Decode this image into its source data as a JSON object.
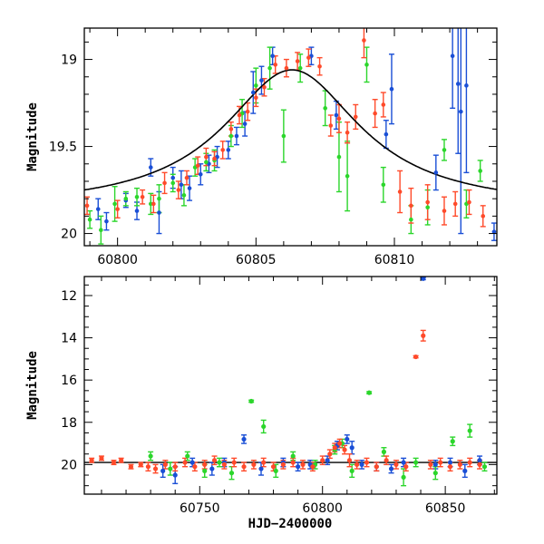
{
  "chart_data": [
    {
      "type": "scatter",
      "panel": "zoom",
      "title": "",
      "xlabel": "",
      "ylabel": "Magnitude",
      "xlim": [
        60798.8,
        60813.7
      ],
      "ylim": [
        20.07,
        18.82
      ],
      "y_inverted": true,
      "x_ticks": [
        "60800",
        "60805",
        "60810"
      ],
      "x_tick_values": [
        60800,
        60805,
        60810
      ],
      "y_ticks": [
        "19",
        "19.5",
        "20"
      ],
      "y_tick_values": [
        19,
        19.5,
        20
      ],
      "grid": false,
      "legend": "none",
      "model_curve": {
        "description": "peaked model light curve (Paczynski-like)",
        "t0": 60806.3,
        "baseline": 19.86,
        "peak": 19.06,
        "tE": 3.0,
        "color": "#000000"
      },
      "series": [
        {
          "color": "#1a4fd6",
          "points": [
            [
              60799.3,
              19.86,
              0.06
            ],
            [
              60799.6,
              19.93,
              0.05
            ],
            [
              60800.3,
              19.81,
              0.04
            ],
            [
              60800.7,
              19.87,
              0.05
            ],
            [
              60801.2,
              19.62,
              0.05
            ],
            [
              60801.5,
              19.88,
              0.12
            ],
            [
              60802.0,
              19.68,
              0.06
            ],
            [
              60802.3,
              19.72,
              0.08
            ],
            [
              60802.6,
              19.74,
              0.07
            ],
            [
              60803.0,
              19.66,
              0.06
            ],
            [
              60803.3,
              19.6,
              0.05
            ],
            [
              60803.6,
              19.56,
              0.06
            ],
            [
              60804.0,
              19.52,
              0.05
            ],
            [
              60804.3,
              19.44,
              0.05
            ],
            [
              60804.6,
              19.37,
              0.07
            ],
            [
              60804.9,
              19.19,
              0.12
            ],
            [
              60805.2,
              19.12,
              0.08
            ],
            [
              60805.6,
              18.98,
              0.05
            ],
            [
              60807.0,
              18.98,
              0.05
            ],
            [
              60807.9,
              19.32,
              0.08
            ],
            [
              60809.7,
              19.43,
              0.08
            ],
            [
              60809.9,
              19.17,
              0.2
            ],
            [
              60811.5,
              19.65,
              0.1
            ],
            [
              60812.1,
              18.98,
              0.3
            ],
            [
              60812.3,
              19.14,
              0.4
            ],
            [
              60812.4,
              19.3,
              0.7
            ],
            [
              60812.6,
              19.15,
              0.5
            ],
            [
              60813.6,
              19.99,
              0.05
            ]
          ]
        },
        {
          "color": "#2bd62b",
          "points": [
            [
              60799.0,
              19.92,
              0.05
            ],
            [
              60799.4,
              19.98,
              0.08
            ],
            [
              60799.9,
              19.83,
              0.1
            ],
            [
              60800.3,
              19.8,
              0.04
            ],
            [
              60800.7,
              19.79,
              0.05
            ],
            [
              60801.2,
              19.83,
              0.06
            ],
            [
              60801.5,
              19.8,
              0.08
            ],
            [
              60802.0,
              19.71,
              0.05
            ],
            [
              60802.4,
              19.78,
              0.06
            ],
            [
              60802.8,
              19.62,
              0.05
            ],
            [
              60803.2,
              19.59,
              0.05
            ],
            [
              60803.5,
              19.58,
              0.06
            ],
            [
              60804.1,
              19.44,
              0.06
            ],
            [
              60804.5,
              19.31,
              0.08
            ],
            [
              60805.0,
              19.15,
              0.1
            ],
            [
              60805.5,
              19.05,
              0.12
            ],
            [
              60806.0,
              19.44,
              0.15
            ],
            [
              60806.6,
              19.05,
              0.08
            ],
            [
              60807.5,
              19.28,
              0.1
            ],
            [
              60808.0,
              19.56,
              0.2
            ],
            [
              60808.3,
              19.67,
              0.2
            ],
            [
              60809.0,
              19.03,
              0.1
            ],
            [
              60809.6,
              19.72,
              0.1
            ],
            [
              60810.6,
              19.92,
              0.08
            ],
            [
              60811.2,
              19.85,
              0.1
            ],
            [
              60811.8,
              19.52,
              0.06
            ],
            [
              60812.6,
              19.83,
              0.08
            ],
            [
              60813.1,
              19.64,
              0.06
            ]
          ]
        },
        {
          "color": "#ff4a2a",
          "points": [
            [
              60798.9,
              19.84,
              0.05
            ],
            [
              60800.0,
              19.86,
              0.05
            ],
            [
              60800.9,
              19.79,
              0.04
            ],
            [
              60801.3,
              19.83,
              0.05
            ],
            [
              60801.7,
              19.71,
              0.06
            ],
            [
              60802.2,
              19.75,
              0.05
            ],
            [
              60802.5,
              19.68,
              0.04
            ],
            [
              60802.9,
              19.61,
              0.05
            ],
            [
              60803.2,
              19.56,
              0.05
            ],
            [
              60803.5,
              19.57,
              0.04
            ],
            [
              60803.8,
              19.52,
              0.05
            ],
            [
              60804.1,
              19.4,
              0.04
            ],
            [
              60804.4,
              19.32,
              0.05
            ],
            [
              60804.7,
              19.3,
              0.05
            ],
            [
              60805.0,
              19.22,
              0.05
            ],
            [
              60805.3,
              19.16,
              0.05
            ],
            [
              60805.7,
              19.03,
              0.05
            ],
            [
              60806.1,
              19.05,
              0.05
            ],
            [
              60806.5,
              19.01,
              0.05
            ],
            [
              60806.9,
              18.99,
              0.05
            ],
            [
              60807.3,
              19.04,
              0.05
            ],
            [
              60807.7,
              19.38,
              0.06
            ],
            [
              60808.0,
              19.34,
              0.08
            ],
            [
              60808.3,
              19.42,
              0.06
            ],
            [
              60808.6,
              19.33,
              0.07
            ],
            [
              60808.9,
              18.89,
              0.1
            ],
            [
              60809.3,
              19.31,
              0.08
            ],
            [
              60809.6,
              19.26,
              0.07
            ],
            [
              60810.2,
              19.76,
              0.12
            ],
            [
              60810.6,
              19.84,
              0.1
            ],
            [
              60811.2,
              19.82,
              0.1
            ],
            [
              60811.8,
              19.87,
              0.08
            ],
            [
              60812.2,
              19.83,
              0.07
            ],
            [
              60812.7,
              19.82,
              0.07
            ],
            [
              60813.2,
              19.9,
              0.06
            ]
          ]
        }
      ]
    },
    {
      "type": "scatter",
      "panel": "full",
      "title": "",
      "xlabel": "HJD−2400000",
      "ylabel": "Magnitude",
      "xlim": [
        60703,
        60871
      ],
      "ylim": [
        21.4,
        11.1
      ],
      "y_inverted": true,
      "x_ticks": [
        "60750",
        "60800",
        "60850"
      ],
      "x_tick_values": [
        60750,
        60800,
        60850
      ],
      "y_ticks": [
        "12",
        "14",
        "16",
        "18",
        "20"
      ],
      "y_tick_values": [
        12,
        14,
        16,
        18,
        20
      ],
      "grid": false,
      "legend": "none",
      "baseline_magnitude": 19.9,
      "series": [
        {
          "color": "#1a4fd6",
          "points": [
            [
              60735.0,
              20.3,
              0.3
            ],
            [
              60740.0,
              20.5,
              0.4
            ],
            [
              60747.0,
              19.9,
              0.2
            ],
            [
              60755.0,
              20.2,
              0.3
            ],
            [
              60760.0,
              19.9,
              0.2
            ],
            [
              60768.0,
              18.8,
              0.2
            ],
            [
              60775.0,
              20.2,
              0.3
            ],
            [
              60784.0,
              19.9,
              0.2
            ],
            [
              60790.0,
              20.1,
              0.2
            ],
            [
              60795.0,
              20.0,
              0.2
            ],
            [
              60802.0,
              19.8,
              0.2
            ],
            [
              60806.0,
              19.1,
              0.2
            ],
            [
              60810.0,
              18.8,
              0.2
            ],
            [
              60812.0,
              19.2,
              0.3
            ],
            [
              60816.0,
              20.0,
              0.2
            ],
            [
              60822.0,
              20.1,
              0.2
            ],
            [
              60828.0,
              20.2,
              0.2
            ],
            [
              60833.0,
              19.9,
              0.2
            ],
            [
              60841.0,
              11.2,
              0.05
            ],
            [
              60846.0,
              20.0,
              0.2
            ],
            [
              60852.0,
              19.9,
              0.2
            ],
            [
              60858.0,
              20.3,
              0.3
            ],
            [
              60864.0,
              19.8,
              0.2
            ]
          ]
        },
        {
          "color": "#2bd62b",
          "points": [
            [
              60730.0,
              19.6,
              0.2
            ],
            [
              60738.0,
              20.2,
              0.3
            ],
            [
              60745.0,
              19.6,
              0.2
            ],
            [
              60752.0,
              20.3,
              0.3
            ],
            [
              60758.0,
              19.9,
              0.2
            ],
            [
              60763.0,
              20.4,
              0.3
            ],
            [
              60771.0,
              17.0,
              0.05
            ],
            [
              60776.0,
              18.2,
              0.3
            ],
            [
              60781.0,
              20.3,
              0.3
            ],
            [
              60788.0,
              19.6,
              0.2
            ],
            [
              60797.0,
              20.0,
              0.2
            ],
            [
              60805.0,
              19.3,
              0.2
            ],
            [
              60808.0,
              19.0,
              0.2
            ],
            [
              60812.0,
              20.3,
              0.3
            ],
            [
              60819.0,
              16.6,
              0.05
            ],
            [
              60825.0,
              19.4,
              0.2
            ],
            [
              60833.0,
              20.6,
              0.4
            ],
            [
              60838.0,
              19.9,
              0.2
            ],
            [
              60846.0,
              20.4,
              0.3
            ],
            [
              60853.0,
              18.9,
              0.2
            ],
            [
              60860.0,
              18.4,
              0.3
            ],
            [
              60866.0,
              20.1,
              0.2
            ]
          ]
        },
        {
          "color": "#ff4a2a",
          "points": [
            [
              60706.0,
              19.8,
              0.1
            ],
            [
              60710.0,
              19.7,
              0.1
            ],
            [
              60715.0,
              19.9,
              0.1
            ],
            [
              60718.0,
              19.8,
              0.1
            ],
            [
              60722.0,
              20.1,
              0.1
            ],
            [
              60726.0,
              20.0,
              0.1
            ],
            [
              60729.0,
              20.1,
              0.2
            ],
            [
              60732.0,
              20.2,
              0.2
            ],
            [
              60736.0,
              20.0,
              0.2
            ],
            [
              60740.0,
              20.1,
              0.2
            ],
            [
              60744.0,
              19.9,
              0.2
            ],
            [
              60748.0,
              20.1,
              0.2
            ],
            [
              60752.0,
              20.0,
              0.2
            ],
            [
              60756.0,
              19.8,
              0.2
            ],
            [
              60760.0,
              20.0,
              0.2
            ],
            [
              60764.0,
              19.9,
              0.2
            ],
            [
              60768.0,
              20.1,
              0.2
            ],
            [
              60772.0,
              20.0,
              0.2
            ],
            [
              60776.0,
              19.9,
              0.2
            ],
            [
              60780.0,
              20.1,
              0.2
            ],
            [
              60784.0,
              20.0,
              0.2
            ],
            [
              60788.0,
              19.9,
              0.2
            ],
            [
              60792.0,
              20.0,
              0.2
            ],
            [
              60796.0,
              20.1,
              0.2
            ],
            [
              60800.0,
              19.8,
              0.2
            ],
            [
              60803.0,
              19.5,
              0.2
            ],
            [
              60805.0,
              19.2,
              0.2
            ],
            [
              60807.0,
              19.0,
              0.2
            ],
            [
              60809.0,
              19.3,
              0.2
            ],
            [
              60811.0,
              19.8,
              0.3
            ],
            [
              60814.0,
              20.0,
              0.2
            ],
            [
              60818.0,
              19.9,
              0.2
            ],
            [
              60822.0,
              20.1,
              0.2
            ],
            [
              60826.0,
              19.8,
              0.2
            ],
            [
              60830.0,
              20.0,
              0.2
            ],
            [
              60834.0,
              20.1,
              0.2
            ],
            [
              60838.0,
              14.9,
              0.05
            ],
            [
              60841.0,
              13.9,
              0.25
            ],
            [
              60844.0,
              20.0,
              0.2
            ],
            [
              60848.0,
              19.9,
              0.2
            ],
            [
              60852.0,
              20.1,
              0.2
            ],
            [
              60856.0,
              20.0,
              0.2
            ],
            [
              60860.0,
              19.9,
              0.2
            ],
            [
              60864.0,
              20.0,
              0.2
            ]
          ]
        }
      ]
    }
  ]
}
